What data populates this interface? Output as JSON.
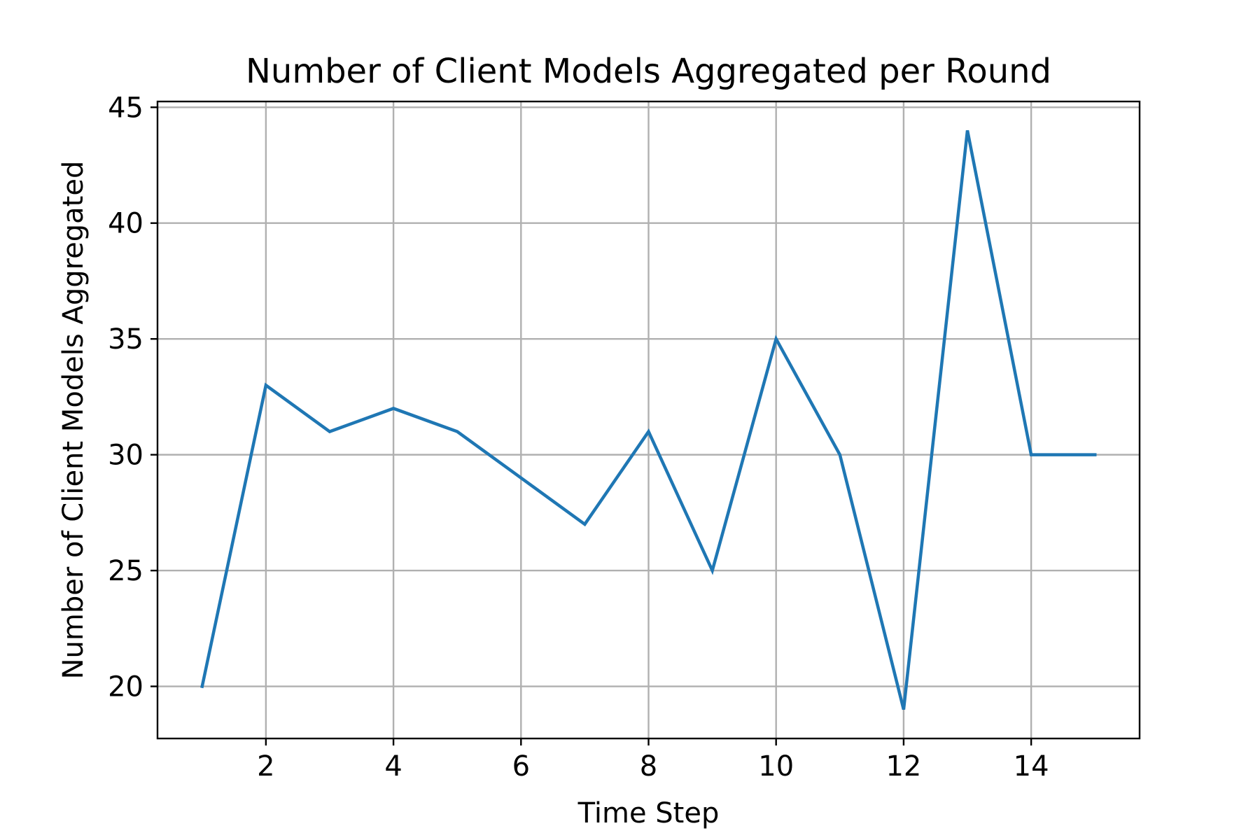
{
  "chart_data": {
    "type": "line",
    "title": "Number of Client Models Aggregated per Round",
    "xlabel": "Time Step",
    "ylabel": "Number of Client Models Aggregated",
    "x": [
      1,
      2,
      3,
      4,
      5,
      6,
      7,
      8,
      9,
      10,
      11,
      12,
      13,
      14,
      15
    ],
    "series": [
      {
        "values": [
          20,
          33,
          31,
          32,
          31,
          29,
          27,
          31,
          25,
          35,
          30,
          19,
          44,
          30,
          30
        ],
        "color": "#1f77b4"
      }
    ],
    "xlim": [
      0.3,
      15.7
    ],
    "ylim": [
      17.75,
      45.25
    ],
    "xticks": [
      2,
      4,
      6,
      8,
      10,
      12,
      14
    ],
    "xtick_labels": [
      "2",
      "4",
      "6",
      "8",
      "10",
      "12",
      "14"
    ],
    "yticks": [
      20,
      25,
      30,
      35,
      40,
      45
    ],
    "ytick_labels": [
      "20",
      "25",
      "30",
      "35",
      "40",
      "45"
    ],
    "grid": true,
    "legend": false
  }
}
